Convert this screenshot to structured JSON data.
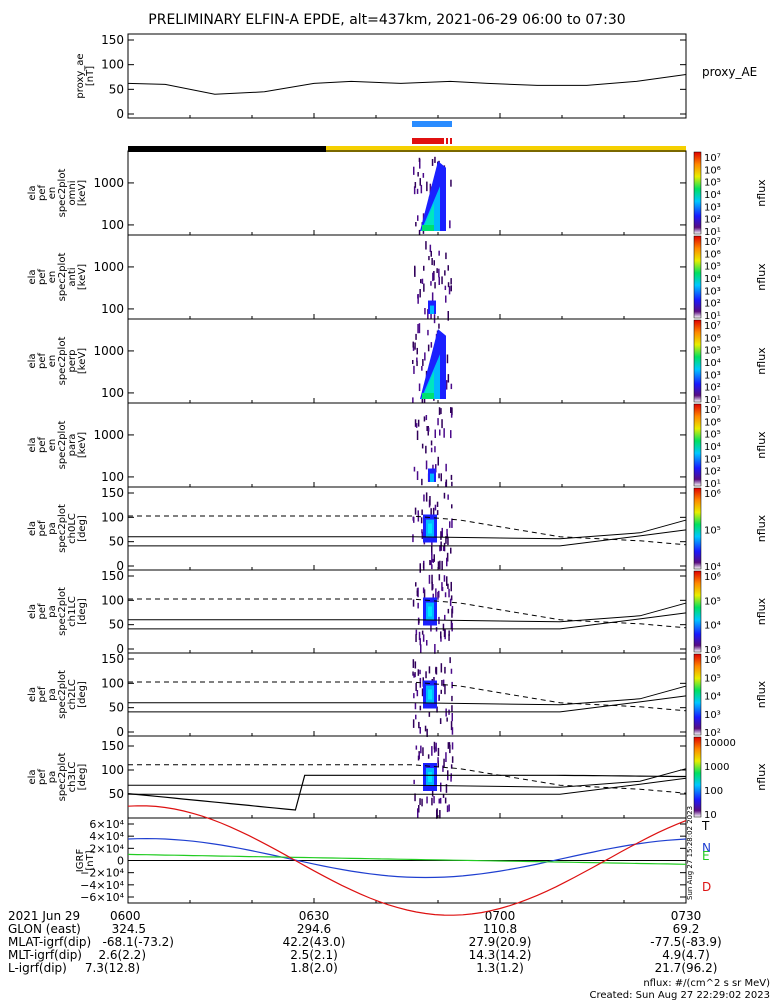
{
  "chart_data": {
    "type": "spectrogram-stack",
    "title": "PRELIMINARY ELFIN-A EPDE, alt=437km, 2021-06-29 06:00 to 07:30",
    "time_range": [
      "0600",
      "0730"
    ],
    "panels": [
      {
        "id": "proxy_ae",
        "type": "line",
        "ylabel": [
          "proxy_ae",
          "[nT]"
        ],
        "series_label": "proxy_AE",
        "ylim": [
          0,
          150
        ],
        "yticks": [
          "150",
          "100",
          "50",
          "0"
        ],
        "x_minutes": [
          0,
          6,
          14,
          22,
          30,
          36,
          44,
          52,
          58,
          66,
          74,
          82,
          90
        ],
        "values": [
          62,
          60,
          40,
          45,
          62,
          66,
          62,
          66,
          62,
          58,
          58,
          66,
          80
        ]
      },
      {
        "id": "en_omni",
        "type": "spectrogram",
        "ylabel": [
          "ela",
          "pef",
          "en",
          "spec2plot",
          "omni",
          "[keV]"
        ],
        "yticks": [
          "1000",
          "100"
        ],
        "colorbar": {
          "label": "nflux",
          "ticks": [
            "10⁷",
            "10⁶",
            "10⁵",
            "10⁴",
            "10³",
            "10²",
            "10¹"
          ]
        }
      },
      {
        "id": "en_anti",
        "type": "spectrogram",
        "ylabel": [
          "ela",
          "pef",
          "en",
          "spec2plot",
          "anti",
          "[keV]"
        ],
        "yticks": [
          "1000",
          "100"
        ],
        "colorbar": {
          "label": "nflux",
          "ticks": [
            "10⁷",
            "10⁶",
            "10⁵",
            "10⁴",
            "10³",
            "10²",
            "10¹"
          ]
        }
      },
      {
        "id": "en_perp",
        "type": "spectrogram",
        "ylabel": [
          "ela",
          "pef",
          "en",
          "spec2plot",
          "perp",
          "[keV]"
        ],
        "yticks": [
          "1000",
          "100"
        ],
        "colorbar": {
          "label": "nflux",
          "ticks": [
            "10⁷",
            "10⁶",
            "10⁵",
            "10⁴",
            "10³",
            "10²",
            "10¹"
          ]
        }
      },
      {
        "id": "en_para",
        "type": "spectrogram",
        "ylabel": [
          "ela",
          "pef",
          "en",
          "spec2plot",
          "para",
          "[keV]"
        ],
        "yticks": [
          "1000",
          "100"
        ],
        "colorbar": {
          "label": "nflux",
          "ticks": [
            "10⁷",
            "10⁶",
            "10⁵",
            "10⁴",
            "10³",
            "10²",
            "10¹"
          ]
        }
      },
      {
        "id": "pa_ch0",
        "type": "spectrogram",
        "ylabel": [
          "ela",
          "pef",
          "pa",
          "spec2plot",
          "ch0LC",
          "[deg]"
        ],
        "yticks": [
          "150",
          "100",
          "50",
          "0"
        ],
        "colorbar": {
          "label": "nflux",
          "ticks": [
            "10⁶",
            "10⁵",
            "10⁴"
          ]
        }
      },
      {
        "id": "pa_ch1",
        "type": "spectrogram",
        "ylabel": [
          "ela",
          "pef",
          "pa",
          "spec2plot",
          "ch1LC",
          "[deg]"
        ],
        "yticks": [
          "150",
          "100",
          "50",
          "0"
        ],
        "colorbar": {
          "label": "nflux",
          "ticks": [
            "10⁶",
            "10⁵",
            "10⁴",
            "10³"
          ]
        }
      },
      {
        "id": "pa_ch2",
        "type": "spectrogram",
        "ylabel": [
          "ela",
          "pef",
          "pa",
          "spec2plot",
          "ch2LC",
          "[deg]"
        ],
        "yticks": [
          "150",
          "100",
          "50",
          "0"
        ],
        "colorbar": {
          "label": "nflux",
          "ticks": [
            "10⁶",
            "10⁵",
            "10⁴",
            "10³",
            "10²"
          ]
        }
      },
      {
        "id": "pa_ch3",
        "type": "spectrogram",
        "ylabel": [
          "ela",
          "pef",
          "pa",
          "spec2plot",
          "ch3LC",
          "[deg]"
        ],
        "yticks": [
          "150",
          "100",
          "50"
        ],
        "colorbar": {
          "label": "nflux",
          "ticks": [
            "10000",
            "1000",
            "100",
            "10"
          ]
        }
      },
      {
        "id": "igrf",
        "type": "line",
        "ylabel": [
          "IGRF",
          "[nT]"
        ],
        "yticks": [
          "6×10⁴",
          "4×10⁴",
          "2×10⁴",
          "0",
          "−2×10⁴",
          "−4×10⁴",
          "−6×10⁴"
        ],
        "series": [
          {
            "name": "T",
            "color": "#000000"
          },
          {
            "name": "N",
            "color": "#1f3fd0"
          },
          {
            "name": "E",
            "color": "#22cc22"
          },
          {
            "name": "D",
            "color": "#dd1111"
          }
        ]
      }
    ],
    "orbit_table": {
      "header": [
        "2021 Jun 29",
        "0600",
        "0630",
        "0700",
        "0730"
      ],
      "rows": [
        {
          "label": "GLON (east)",
          "values": [
            "324.5",
            "294.6",
            "110.8",
            "69.2"
          ]
        },
        {
          "label": "MLAT-igrf(dip)",
          "values": [
            "-68.1(-73.2)",
            "42.2(43.0)",
            "27.9(20.9)",
            "-77.5(-83.9)"
          ]
        },
        {
          "label": "MLT-igrf(dip)",
          "values": [
            "2.6(2.2)",
            "2.5(2.1)",
            "14.3(14.2)",
            "4.9(4.7)"
          ]
        },
        {
          "label": "L-igrf(dip)",
          "values": [
            "7.3(12.8)",
            "1.8(2.0)",
            "1.3(1.2)",
            "21.7(96.2)"
          ]
        }
      ]
    },
    "footer": {
      "units": "nflux: #/(cm^2 s sr MeV)",
      "created": "Created: Sun Aug 27 22:29:02 2023",
      "side_stamp": "Sun Aug 27 15:28:02 2023"
    }
  }
}
